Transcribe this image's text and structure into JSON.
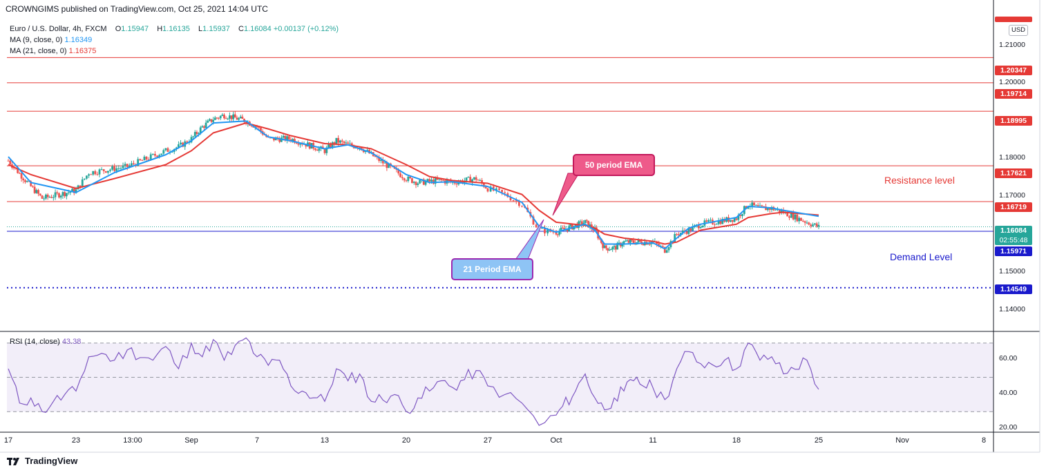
{
  "header": {
    "title": "CROWNGIMS published on TradingView.com, Oct 25, 2021 14:04 UTC"
  },
  "legend": {
    "symbol": "Euro / U.S. Dollar, 4h, FXCM",
    "open_label": "O",
    "open": "1.15947",
    "high_label": "H",
    "high": "1.16135",
    "low_label": "L",
    "low": "1.15937",
    "close_label": "C",
    "close": "1.16084",
    "change": "+0.00137 (+0.12%)",
    "ma9_label": "MA (9, close, 0)",
    "ma9_value": "1.16349",
    "ma21_label": "MA (21, close, 0)",
    "ma21_value": "1.16375"
  },
  "currency_badge": "USD",
  "price_axis": {
    "ticks": [
      "1.21000",
      "1.20000",
      "1.18000",
      "1.17000",
      "1.15000",
      "1.14000"
    ],
    "tags": {
      "r1": "1.20347",
      "r2": "1.19714",
      "r3": "1.18995",
      "r4": "1.17621",
      "r5": "1.16719",
      "current": "1.16084",
      "countdown": "02:55:48",
      "demand": "1.15971",
      "support": "1.14549"
    }
  },
  "rsi": {
    "label": "RSI (14, close)",
    "value": "43.38",
    "ticks": [
      "60.00",
      "40.00",
      "20.00"
    ]
  },
  "x_axis": {
    "labels": [
      "17",
      "23",
      "13:00",
      "Sep",
      "7",
      "13",
      "20",
      "27",
      "Oct",
      "11",
      "18",
      "25",
      "Nov",
      "8"
    ]
  },
  "annotations": {
    "resistance": "Resistance level",
    "demand": "Demand Level",
    "ema50": "50 period EMA",
    "ema21": "21 Period EMA"
  },
  "footer": {
    "brand": "TradingView"
  },
  "colors": {
    "up": "#26a69a",
    "down": "#ef5350",
    "ma9": "#2196f3",
    "ma21": "#e53935",
    "resistance": "#e53935",
    "demand": "#1a1acc",
    "rsi": "#7e57c2",
    "ema50_box": "#ee5a8a",
    "ema21_box": "#8ec4f5"
  },
  "chart_data": [
    {
      "type": "candlestick",
      "title": "Euro / U.S. Dollar, 4h, FXCM",
      "x_labels": [
        "17",
        "23",
        "13:00",
        "Sep",
        "7",
        "13",
        "20",
        "27",
        "Oct",
        "11",
        "18",
        "25",
        "Nov",
        "8"
      ],
      "ylim": [
        1.1345,
        1.2145
      ],
      "path_close": [
        [
          "Aug 17",
          1.1775
        ],
        [
          "Aug 19",
          1.171
        ],
        [
          "Aug 20",
          1.168
        ],
        [
          "Aug 23",
          1.17
        ],
        [
          "Aug 24",
          1.1745
        ],
        [
          "Aug 26",
          1.1755
        ],
        [
          "Aug 27",
          1.176
        ],
        [
          "Aug 30",
          1.18
        ],
        [
          "Aug 31",
          1.181
        ],
        [
          "Sep 1",
          1.183
        ],
        [
          "Sep 2",
          1.186
        ],
        [
          "Sep 3",
          1.188
        ],
        [
          "Sep 4",
          1.189
        ],
        [
          "Sep 6",
          1.1875
        ],
        [
          "Sep 7",
          1.186
        ],
        [
          "Sep 8",
          1.183
        ],
        [
          "Sep 10",
          1.183
        ],
        [
          "Sep 13",
          1.18
        ],
        [
          "Sep 14",
          1.1825
        ],
        [
          "Sep 15",
          1.1815
        ],
        [
          "Sep 16",
          1.181
        ],
        [
          "Sep 17",
          1.179
        ],
        [
          "Sep 20",
          1.173
        ],
        [
          "Sep 21",
          1.172
        ],
        [
          "Sep 23",
          1.1725
        ],
        [
          "Sep 24",
          1.172
        ],
        [
          "Sep 26",
          1.173
        ],
        [
          "Sep 27",
          1.1705
        ],
        [
          "Sep 28",
          1.169
        ],
        [
          "Sep 29",
          1.1665
        ],
        [
          "Sep 30",
          1.16
        ],
        [
          "Oct 1",
          1.1595
        ],
        [
          "Oct 4",
          1.162
        ],
        [
          "Oct 5",
          1.16
        ],
        [
          "Oct 6",
          1.1555
        ],
        [
          "Oct 7",
          1.1555
        ],
        [
          "Oct 8",
          1.157
        ],
        [
          "Oct 11",
          1.157
        ],
        [
          "Oct 12",
          1.155
        ],
        [
          "Oct 13",
          1.159
        ],
        [
          "Oct 14",
          1.16
        ],
        [
          "Oct 15",
          1.1615
        ],
        [
          "Oct 18",
          1.163
        ],
        [
          "Oct 19",
          1.1665
        ],
        [
          "Oct 20",
          1.1655
        ],
        [
          "Oct 21",
          1.1655
        ],
        [
          "Oct 22",
          1.1645
        ],
        [
          "Oct 25",
          1.1608
        ]
      ],
      "ma_9": [
        [
          "Aug 17",
          1.1785
        ],
        [
          "Aug 19",
          1.172
        ],
        [
          "Aug 23",
          1.1695
        ],
        [
          "Aug 26",
          1.1745
        ],
        [
          "Aug 30",
          1.179
        ],
        [
          "Sep 1",
          1.1825
        ],
        [
          "Sep 3",
          1.187
        ],
        [
          "Sep 6",
          1.1875
        ],
        [
          "Sep 8",
          1.1835
        ],
        [
          "Sep 10",
          1.1825
        ],
        [
          "Sep 13",
          1.1805
        ],
        [
          "Sep 15",
          1.1815
        ],
        [
          "Sep 17",
          1.1795
        ],
        [
          "Sep 20",
          1.174
        ],
        [
          "Sep 22",
          1.172
        ],
        [
          "Sep 24",
          1.1722
        ],
        [
          "Sep 27",
          1.171
        ],
        [
          "Sep 29",
          1.167
        ],
        [
          "Sep 30",
          1.161
        ],
        [
          "Oct 1",
          1.1595
        ],
        [
          "Oct 4",
          1.1615
        ],
        [
          "Oct 5",
          1.16
        ],
        [
          "Oct 6",
          1.1565
        ],
        [
          "Oct 8",
          1.1565
        ],
        [
          "Oct 11",
          1.1568
        ],
        [
          "Oct 12",
          1.1553
        ],
        [
          "Oct 13",
          1.158
        ],
        [
          "Oct 14",
          1.1605
        ],
        [
          "Oct 15",
          1.1615
        ],
        [
          "Oct 18",
          1.1632
        ],
        [
          "Oct 19",
          1.166
        ],
        [
          "Oct 21",
          1.1656
        ],
        [
          "Oct 22",
          1.165
        ],
        [
          "Oct 25",
          1.1635
        ]
      ],
      "ma_21": [
        [
          "Aug 17",
          1.1765
        ],
        [
          "Aug 19",
          1.174
        ],
        [
          "Aug 23",
          1.1705
        ],
        [
          "Aug 26",
          1.173
        ],
        [
          "Aug 30",
          1.1765
        ],
        [
          "Sep 1",
          1.18
        ],
        [
          "Sep 3",
          1.1845
        ],
        [
          "Sep 6",
          1.187
        ],
        [
          "Sep 8",
          1.1855
        ],
        [
          "Sep 10",
          1.1838
        ],
        [
          "Sep 13",
          1.1818
        ],
        [
          "Sep 15",
          1.1815
        ],
        [
          "Sep 17",
          1.1805
        ],
        [
          "Sep 20",
          1.1765
        ],
        [
          "Sep 22",
          1.1735
        ],
        [
          "Sep 24",
          1.1725
        ],
        [
          "Sep 27",
          1.1718
        ],
        [
          "Sep 29",
          1.169
        ],
        [
          "Sep 30",
          1.165
        ],
        [
          "Oct 1",
          1.162
        ],
        [
          "Oct 4",
          1.1612
        ],
        [
          "Oct 5",
          1.1605
        ],
        [
          "Oct 6",
          1.159
        ],
        [
          "Oct 8",
          1.158
        ],
        [
          "Oct 11",
          1.1572
        ],
        [
          "Oct 12",
          1.1565
        ],
        [
          "Oct 13",
          1.157
        ],
        [
          "Oct 14",
          1.1585
        ],
        [
          "Oct 15",
          1.16
        ],
        [
          "Oct 18",
          1.1615
        ],
        [
          "Oct 19",
          1.1632
        ],
        [
          "Oct 21",
          1.1642
        ],
        [
          "Oct 22",
          1.1645
        ],
        [
          "Oct 25",
          1.1638
        ]
      ],
      "horizontal_levels": [
        {
          "value": 1.20347,
          "style": "solid",
          "color": "#e53935"
        },
        {
          "value": 1.19714,
          "style": "solid",
          "color": "#e53935"
        },
        {
          "value": 1.18995,
          "style": "solid",
          "color": "#e53935"
        },
        {
          "value": 1.17621,
          "style": "solid",
          "color": "#e53935"
        },
        {
          "value": 1.16719,
          "style": "solid",
          "color": "#e53935"
        },
        {
          "value": 1.15971,
          "style": "solid",
          "color": "#1a1acc"
        },
        {
          "value": 1.14549,
          "style": "dotted",
          "color": "#1a1acc"
        }
      ]
    },
    {
      "type": "line",
      "title": "RSI (14, close)",
      "ylim": [
        18,
        76
      ],
      "bands": [
        70,
        50,
        30
      ],
      "series": [
        {
          "name": "RSI (14, close)",
          "values": [
            [
              "Aug 17",
              55
            ],
            [
              "Aug 18",
              35
            ],
            [
              "Aug 19",
              38
            ],
            [
              "Aug 20",
              30
            ],
            [
              "Aug 21",
              36
            ],
            [
              "Aug 23",
              42
            ],
            [
              "Aug 24",
              62
            ],
            [
              "Aug 25",
              64
            ],
            [
              "Aug 26",
              60
            ],
            [
              "Aug 27",
              66
            ],
            [
              "Aug 29",
              60
            ],
            [
              "Aug 30",
              68
            ],
            [
              "Aug 31",
              55
            ],
            [
              "Sep 1",
              70
            ],
            [
              "Sep 2",
              62
            ],
            [
              "Sep 3",
              72
            ],
            [
              "Sep 4",
              60
            ],
            [
              "Sep 6",
              73
            ],
            [
              "Sep 7",
              62
            ],
            [
              "Sep 8",
              57
            ],
            [
              "Sep 9",
              60
            ],
            [
              "Sep 10",
              45
            ],
            [
              "Sep 11",
              42
            ],
            [
              "Sep 13",
              36
            ],
            [
              "Sep 14",
              55
            ],
            [
              "Sep 15",
              48
            ],
            [
              "Sep 16",
              52
            ],
            [
              "Sep 17",
              36
            ],
            [
              "Sep 19",
              40
            ],
            [
              "Sep 20",
              30
            ],
            [
              "Sep 21",
              38
            ],
            [
              "Sep 22",
              42
            ],
            [
              "Sep 23",
              48
            ],
            [
              "Sep 24",
              44
            ],
            [
              "Sep 26",
              54
            ],
            [
              "Sep 27",
              45
            ],
            [
              "Sep 28",
              40
            ],
            [
              "Sep 29",
              35
            ],
            [
              "Sep 30",
              22
            ],
            [
              "Oct 1",
              28
            ],
            [
              "Oct 3",
              42
            ],
            [
              "Oct 4",
              52
            ],
            [
              "Oct 5",
              38
            ],
            [
              "Oct 6",
              31
            ],
            [
              "Oct 7",
              38
            ],
            [
              "Oct 8",
              42
            ],
            [
              "Oct 9",
              48
            ],
            [
              "Oct 11",
              44
            ],
            [
              "Oct 12",
              37
            ],
            [
              "Oct 13",
              55
            ],
            [
              "Oct 14",
              65
            ],
            [
              "Oct 15",
              58
            ],
            [
              "Oct 17",
              60
            ],
            [
              "Oct 18",
              55
            ],
            [
              "Oct 19",
              70
            ],
            [
              "Oct 20",
              60
            ],
            [
              "Oct 21",
              62
            ],
            [
              "Oct 22",
              52
            ],
            [
              "Oct 24",
              60
            ],
            [
              "Oct 25",
              43
            ]
          ]
        }
      ]
    }
  ]
}
